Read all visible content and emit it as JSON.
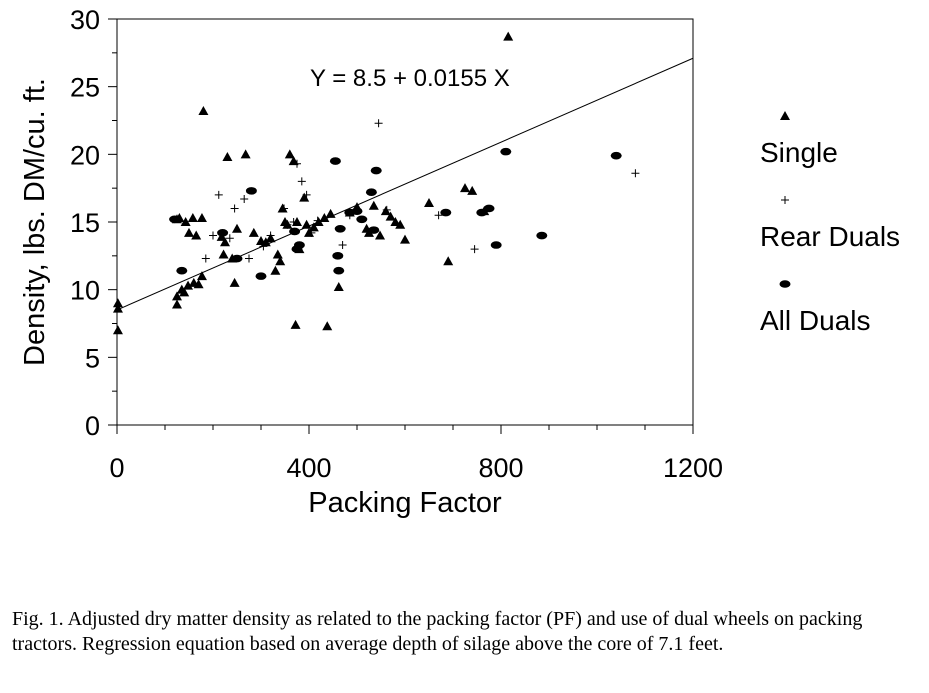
{
  "chart_data": {
    "type": "scatter",
    "xlabel": "Packing Factor",
    "ylabel": "Density, lbs. DM/cu. ft.",
    "xlim": [
      0,
      1200
    ],
    "ylim": [
      0,
      30
    ],
    "xticks": [
      "0",
      "400",
      "800",
      "1200"
    ],
    "yticks": [
      "0",
      "5",
      "10",
      "15",
      "20",
      "25",
      "30"
    ],
    "grid": false,
    "legend_position": "right",
    "annotation": "Y = 8.5 + 0.0155 X",
    "regression": {
      "intercept": 8.5,
      "slope": 0.0155
    },
    "series": [
      {
        "name": "Single",
        "marker": "triangle",
        "points": [
          [
            2,
            9.0
          ],
          [
            2,
            8.6
          ],
          [
            2,
            7.0
          ],
          [
            125,
            8.9
          ],
          [
            125,
            9.5
          ],
          [
            135,
            10.0
          ],
          [
            140,
            9.8
          ],
          [
            148,
            10.3
          ],
          [
            130,
            15.3
          ],
          [
            125,
            15.2
          ],
          [
            143,
            15.0
          ],
          [
            150,
            14.2
          ],
          [
            158,
            15.3
          ],
          [
            165,
            14.0
          ],
          [
            160,
            10.5
          ],
          [
            170,
            10.4
          ],
          [
            177,
            11.0
          ],
          [
            177,
            15.3
          ],
          [
            180,
            23.2
          ],
          [
            218,
            13.9
          ],
          [
            222,
            12.6
          ],
          [
            225,
            13.5
          ],
          [
            230,
            19.8
          ],
          [
            240,
            12.3
          ],
          [
            245,
            10.5
          ],
          [
            250,
            14.5
          ],
          [
            268,
            20.0
          ],
          [
            285,
            14.2
          ],
          [
            300,
            13.6
          ],
          [
            310,
            13.5
          ],
          [
            320,
            13.8
          ],
          [
            330,
            11.4
          ],
          [
            335,
            12.6
          ],
          [
            340,
            12.1
          ],
          [
            345,
            16.0
          ],
          [
            350,
            15.0
          ],
          [
            355,
            14.8
          ],
          [
            360,
            20.0
          ],
          [
            368,
            19.5
          ],
          [
            372,
            7.4
          ],
          [
            375,
            15.0
          ],
          [
            380,
            13.0
          ],
          [
            390,
            16.8
          ],
          [
            395,
            14.8
          ],
          [
            400,
            14.2
          ],
          [
            410,
            14.6
          ],
          [
            420,
            15.0
          ],
          [
            432,
            15.3
          ],
          [
            438,
            7.3
          ],
          [
            445,
            15.6
          ],
          [
            462,
            10.2
          ],
          [
            485,
            15.7
          ],
          [
            500,
            16.1
          ],
          [
            520,
            14.5
          ],
          [
            525,
            14.2
          ],
          [
            535,
            16.2
          ],
          [
            548,
            14.0
          ],
          [
            560,
            15.8
          ],
          [
            570,
            15.4
          ],
          [
            580,
            15.0
          ],
          [
            590,
            14.8
          ],
          [
            600,
            13.7
          ],
          [
            650,
            16.4
          ],
          [
            690,
            12.1
          ],
          [
            725,
            17.5
          ],
          [
            740,
            17.3
          ],
          [
            765,
            15.8
          ],
          [
            815,
            28.7
          ]
        ]
      },
      {
        "name": "Rear Duals",
        "marker": "plus",
        "points": [
          [
            185,
            12.3
          ],
          [
            200,
            14.0
          ],
          [
            212,
            17.0
          ],
          [
            235,
            13.8
          ],
          [
            245,
            16.0
          ],
          [
            265,
            16.7
          ],
          [
            275,
            12.3
          ],
          [
            305,
            13.2
          ],
          [
            320,
            14.0
          ],
          [
            348,
            16.0
          ],
          [
            355,
            14.8
          ],
          [
            368,
            15.0
          ],
          [
            375,
            19.3
          ],
          [
            385,
            18.0
          ],
          [
            395,
            17.0
          ],
          [
            405,
            14.2
          ],
          [
            418,
            15.1
          ],
          [
            470,
            13.3
          ],
          [
            485,
            15.5
          ],
          [
            545,
            22.3
          ],
          [
            562,
            15.9
          ],
          [
            670,
            15.5
          ],
          [
            745,
            13.0
          ],
          [
            1080,
            18.6
          ]
        ]
      },
      {
        "name": "All Duals",
        "marker": "ellipse",
        "points": [
          [
            120,
            15.2
          ],
          [
            135,
            11.4
          ],
          [
            220,
            14.2
          ],
          [
            250,
            12.3
          ],
          [
            280,
            17.3
          ],
          [
            300,
            11.0
          ],
          [
            370,
            14.3
          ],
          [
            375,
            13.0
          ],
          [
            380,
            13.3
          ],
          [
            455,
            19.5
          ],
          [
            460,
            12.5
          ],
          [
            462,
            11.4
          ],
          [
            465,
            14.5
          ],
          [
            485,
            15.7
          ],
          [
            500,
            15.8
          ],
          [
            510,
            15.2
          ],
          [
            530,
            17.2
          ],
          [
            535,
            14.4
          ],
          [
            540,
            18.8
          ],
          [
            685,
            15.7
          ],
          [
            760,
            15.7
          ],
          [
            775,
            16.0
          ],
          [
            790,
            13.3
          ],
          [
            810,
            20.2
          ],
          [
            885,
            14.0
          ],
          [
            1040,
            19.9
          ]
        ]
      }
    ]
  },
  "caption": "Fig. 1.  Adjusted dry matter density as related to the packing factor (PF) and use of dual wheels on packing tractors.  Regression equation based on average depth of silage above the core of 7.1 feet."
}
